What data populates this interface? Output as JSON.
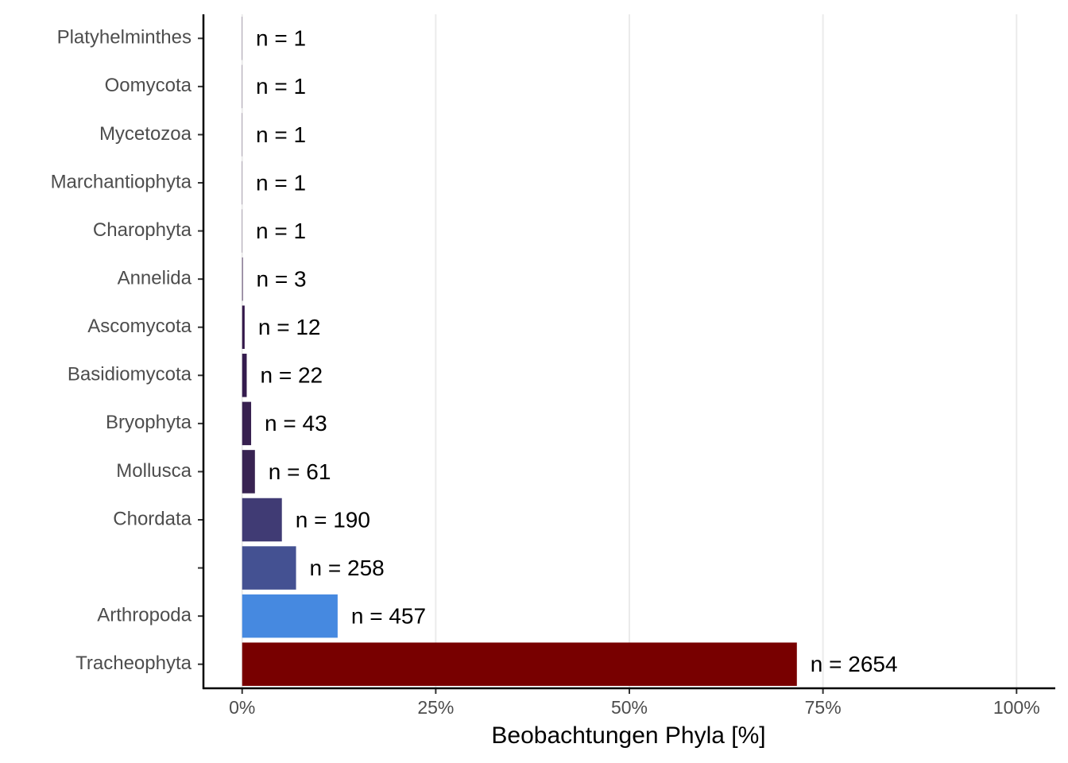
{
  "chart_data": {
    "type": "hbar",
    "x_label": "Beobachtungen Phyla [%]",
    "categories": [
      "Platyhelminthes",
      "Oomycota",
      "Mycetozoa",
      "Marchantiophyta",
      "Charophyta",
      "Annelida",
      "Ascomycota",
      "Basidiomycota",
      "Bryophyta",
      "Mollusca",
      "Chordata",
      null,
      "Arthropoda",
      "Tracheophyta"
    ],
    "values": [
      0.03,
      0.03,
      0.03,
      0.03,
      0.03,
      0.08,
      0.32,
      0.59,
      1.16,
      1.65,
      5.13,
      6.96,
      12.33,
      71.63
    ],
    "labels": [
      "n = 1",
      "n = 1",
      "n = 1",
      "n = 1",
      "n = 1",
      "n = 3",
      "n = 12",
      "n = 22",
      "n = 43",
      "n = 61",
      "n = 190",
      "n = 258",
      "n = 457",
      "n = 2654"
    ],
    "colors": [
      "#2d1040",
      "#2d1040",
      "#2d1040",
      "#2d1040",
      "#2d1040",
      "#2d1040",
      "#33184a",
      "#341b4d",
      "#37204f",
      "#382352",
      "#403b74",
      "#445192",
      "#4689e0",
      "#780000"
    ],
    "xlim": [
      -5,
      105
    ],
    "xticks": [
      {
        "value": 0,
        "label": "0%"
      },
      {
        "value": 25,
        "label": "25%"
      },
      {
        "value": 50,
        "label": "50%"
      },
      {
        "value": 75,
        "label": "75%"
      },
      {
        "value": 100,
        "label": "100%"
      }
    ],
    "grid": true
  }
}
